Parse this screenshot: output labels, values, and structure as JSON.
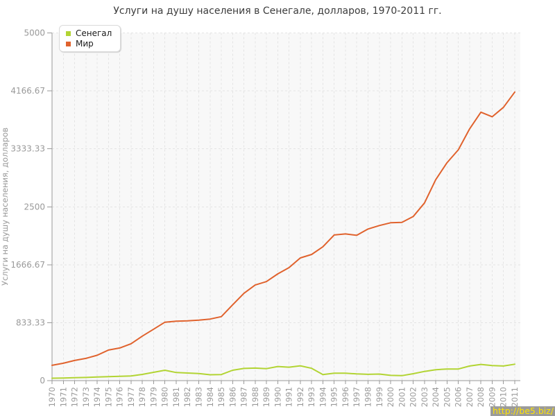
{
  "title": "Услуги на душу населения в Сенегале, долларов, 1970-2011 гг.",
  "watermark": {
    "text": "http://be5.biz/"
  },
  "chart_data": {
    "type": "line",
    "title": "Услуги на душу населения в Сенегале, долларов, 1970-2011 гг.",
    "xlabel": "",
    "ylabel": "Услуги на душу населения, долларов",
    "ylim": [
      0,
      5000
    ],
    "y_ticks": [
      0,
      833.33,
      1666.67,
      2500,
      3333.33,
      4166.67,
      5000
    ],
    "y_tick_labels": [
      "0",
      "833.33",
      "1666.67",
      "2500",
      "3333.33",
      "4166.67",
      "5000"
    ],
    "grid": true,
    "legend_position": "top-left",
    "x": [
      1970,
      1971,
      1972,
      1973,
      1974,
      1975,
      1976,
      1977,
      1978,
      1979,
      1980,
      1981,
      1982,
      1983,
      1984,
      1985,
      1986,
      1987,
      1988,
      1989,
      1990,
      1991,
      1992,
      1993,
      1994,
      1995,
      1996,
      1997,
      1998,
      1999,
      2000,
      2001,
      2002,
      2003,
      2004,
      2005,
      2006,
      2007,
      2008,
      2009,
      2010,
      2011
    ],
    "series": [
      {
        "name": "Сенегал",
        "color": "#b2d433",
        "values": [
          35,
          38,
          42,
          46,
          52,
          58,
          62,
          67,
          90,
          120,
          150,
          117,
          110,
          103,
          85,
          88,
          150,
          175,
          180,
          172,
          203,
          193,
          213,
          177,
          88,
          107,
          107,
          97,
          91,
          95,
          76,
          72,
          100,
          133,
          158,
          167,
          167,
          210,
          233,
          216,
          210,
          236
        ]
      },
      {
        "name": "Мир",
        "color": "#e0622d",
        "values": [
          220,
          250,
          290,
          320,
          365,
          440,
          470,
          530,
          640,
          740,
          840,
          855,
          860,
          870,
          885,
          920,
          1090,
          1255,
          1375,
          1425,
          1535,
          1625,
          1765,
          1815,
          1925,
          2095,
          2110,
          2090,
          2180,
          2230,
          2270,
          2275,
          2360,
          2555,
          2890,
          3135,
          3320,
          3620,
          3860,
          3795,
          3930,
          4150
        ]
      }
    ],
    "colors": {
      "plot_bg": "#f8f8f8",
      "grid": "#e3e3e3",
      "axis": "#999999",
      "tick_label": "#999999",
      "title": "#3c3c3c"
    }
  }
}
